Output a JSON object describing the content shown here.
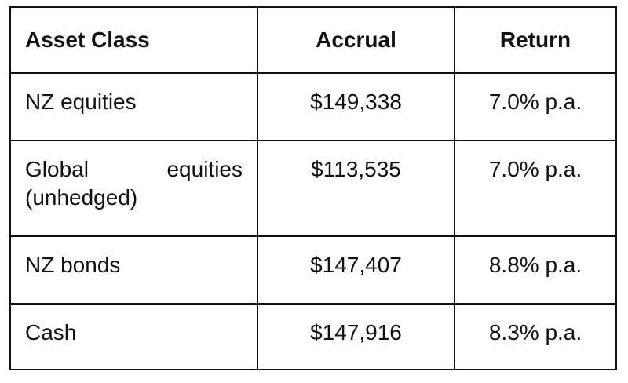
{
  "table": {
    "header": [
      "Asset Class",
      "Accrual",
      "Return"
    ],
    "rows": [
      [
        "NZ equities",
        "$149,338",
        "7.0% p.a."
      ],
      [
        "Global equities (unhedged)",
        "$113,535",
        "7.0% p.a."
      ],
      [
        "NZ bonds",
        "$147,407",
        "8.8% p.a."
      ],
      [
        "Cash",
        "$147,916",
        "8.3% p.a."
      ]
    ]
  }
}
